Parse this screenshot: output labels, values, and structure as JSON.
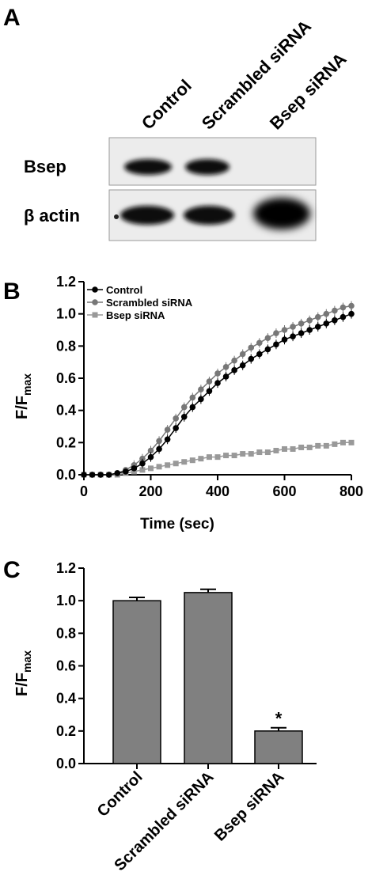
{
  "panels": {
    "a": {
      "letter": "A"
    },
    "b": {
      "letter": "B"
    },
    "c": {
      "letter": "C"
    }
  },
  "blot": {
    "lanes": [
      "Control",
      "Scrambled siRNA",
      "Bsep siRNA"
    ],
    "rows": [
      {
        "label": "Bsep",
        "intensity": [
          0.85,
          0.85,
          0.0
        ]
      },
      {
        "label": "β actin",
        "intensity": [
          0.9,
          0.9,
          1.0
        ]
      }
    ]
  },
  "colors": {
    "control": "#000000",
    "scrambled": "#777777",
    "bsep": "#999999",
    "bar": "#808080"
  },
  "chart_data": [
    {
      "type": "line",
      "panel": "B",
      "xlabel": "Time (sec)",
      "ylabel_main": "F/F",
      "ylabel_sub": "max",
      "xlim": [
        0,
        800
      ],
      "ylim": [
        0,
        1.2
      ],
      "xticks": [
        0,
        200,
        400,
        600,
        800
      ],
      "yticks": [
        "0.0",
        "0.2",
        "0.4",
        "0.6",
        "0.8",
        "1.0",
        "1.2"
      ],
      "legend_position": "top-left",
      "series": [
        {
          "name": "Control",
          "marker": "circle",
          "x": [
            0,
            25,
            50,
            75,
            100,
            125,
            150,
            175,
            200,
            225,
            250,
            275,
            300,
            325,
            350,
            375,
            400,
            425,
            450,
            475,
            500,
            525,
            550,
            575,
            600,
            625,
            650,
            675,
            700,
            725,
            750,
            775,
            800
          ],
          "y": [
            0.0,
            0.0,
            0.0,
            0.0,
            0.01,
            0.02,
            0.04,
            0.07,
            0.11,
            0.16,
            0.22,
            0.29,
            0.36,
            0.42,
            0.47,
            0.52,
            0.57,
            0.61,
            0.65,
            0.68,
            0.72,
            0.75,
            0.78,
            0.81,
            0.84,
            0.86,
            0.88,
            0.9,
            0.92,
            0.94,
            0.96,
            0.98,
            1.0
          ]
        },
        {
          "name": "Scrambled siRNA",
          "marker": "circle",
          "x": [
            0,
            25,
            50,
            75,
            100,
            125,
            150,
            175,
            200,
            225,
            250,
            275,
            300,
            325,
            350,
            375,
            400,
            425,
            450,
            475,
            500,
            525,
            550,
            575,
            600,
            625,
            650,
            675,
            700,
            725,
            750,
            775,
            800
          ],
          "y": [
            0.0,
            0.0,
            0.0,
            0.0,
            0.01,
            0.03,
            0.06,
            0.1,
            0.15,
            0.21,
            0.28,
            0.35,
            0.42,
            0.48,
            0.53,
            0.58,
            0.63,
            0.67,
            0.71,
            0.75,
            0.79,
            0.82,
            0.85,
            0.88,
            0.9,
            0.92,
            0.94,
            0.96,
            0.98,
            1.0,
            1.02,
            1.04,
            1.05
          ]
        },
        {
          "name": "Bsep siRNA",
          "marker": "square",
          "x": [
            0,
            25,
            50,
            75,
            100,
            125,
            150,
            175,
            200,
            225,
            250,
            275,
            300,
            325,
            350,
            375,
            400,
            425,
            450,
            475,
            500,
            525,
            550,
            575,
            600,
            625,
            650,
            675,
            700,
            725,
            750,
            775,
            800
          ],
          "y": [
            0.0,
            0.0,
            0.0,
            0.0,
            0.0,
            0.01,
            0.02,
            0.03,
            0.04,
            0.05,
            0.06,
            0.07,
            0.08,
            0.09,
            0.1,
            0.11,
            0.11,
            0.12,
            0.12,
            0.13,
            0.13,
            0.14,
            0.14,
            0.15,
            0.16,
            0.16,
            0.17,
            0.17,
            0.18,
            0.18,
            0.19,
            0.2,
            0.2
          ]
        }
      ]
    },
    {
      "type": "bar",
      "panel": "C",
      "ylabel_main": "F/F",
      "ylabel_sub": "max",
      "ylim": [
        0,
        1.2
      ],
      "yticks": [
        "0.0",
        "0.2",
        "0.4",
        "0.6",
        "0.8",
        "1.0",
        "1.2"
      ],
      "categories": [
        "Control",
        "Scrambled siRNA",
        "Bsep siRNA"
      ],
      "values": [
        1.0,
        1.05,
        0.2
      ],
      "errors": [
        0.02,
        0.02,
        0.02
      ],
      "annotations": [
        "",
        "",
        "*"
      ]
    }
  ]
}
